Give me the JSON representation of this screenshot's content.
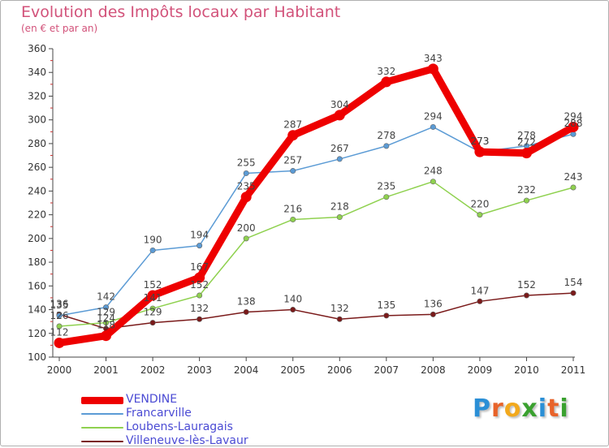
{
  "title": "Evolution des Impôts locaux par Habitant",
  "subtitle": "(en € et par an)",
  "logo": {
    "letters": [
      "P",
      "r",
      "o",
      "x",
      "i",
      "t",
      "i"
    ],
    "colors": [
      "#2b8fd6",
      "#e8632a",
      "#f2a91d",
      "#3aa12f",
      "#2b8fd6",
      "#e8632a",
      "#3aa12f"
    ]
  },
  "chart_data": {
    "type": "line",
    "title": "Evolution des Impôts locaux par Habitant",
    "subtitle": "(en € et par an)",
    "x": [
      "2000",
      "2001",
      "2002",
      "2003",
      "2004",
      "2005",
      "2006",
      "2007",
      "2008",
      "2009",
      "2010",
      "2011"
    ],
    "ylim": [
      100,
      360
    ],
    "yticks": [
      100,
      120,
      140,
      160,
      180,
      200,
      220,
      240,
      260,
      280,
      300,
      320,
      340,
      360
    ],
    "grid": false,
    "legend_position": "bottom-left",
    "series": [
      {
        "name": "VENDINE",
        "color": "#ee0000",
        "values": [
          112,
          118,
          152,
          167,
          235,
          287,
          304,
          332,
          343,
          273,
          272,
          294
        ]
      },
      {
        "name": "Francarville",
        "color": "#5b9bd5",
        "values": [
          135,
          142,
          190,
          194,
          255,
          257,
          267,
          278,
          294,
          273,
          278,
          288
        ]
      },
      {
        "name": "Loubens-Lauragais",
        "color": "#8fd14f",
        "values": [
          126,
          129,
          141,
          152,
          200,
          216,
          218,
          235,
          248,
          220,
          232,
          243
        ]
      },
      {
        "name": "Villeneuve-lès-Lavaur",
        "color": "#7a1a1a",
        "values": [
          136,
          124,
          129,
          132,
          138,
          140,
          132,
          135,
          136,
          147,
          152,
          154
        ]
      }
    ]
  }
}
